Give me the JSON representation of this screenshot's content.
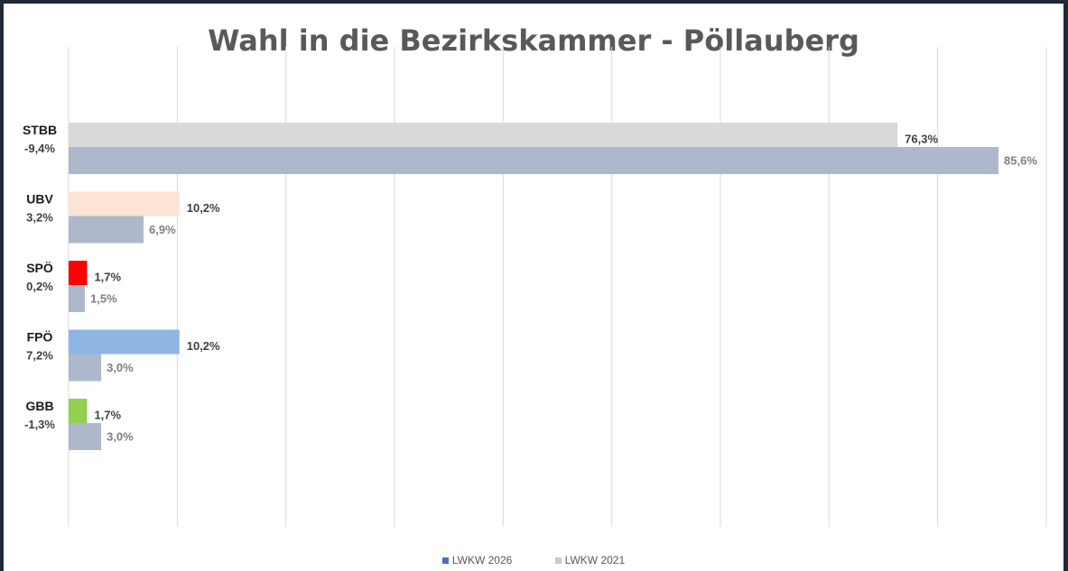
{
  "chart_data": {
    "type": "bar",
    "orientation": "horizontal",
    "title": "Wahl in die Bezirkskammer - Pöllauberg",
    "xlim": [
      0,
      90
    ],
    "grid": true,
    "legend_position": "bottom",
    "categories": [
      {
        "name": "STBB",
        "diff": "-9,4%",
        "color": "#d9d9d9"
      },
      {
        "name": "UBV",
        "diff": "3,2%",
        "color": "#fce4d6"
      },
      {
        "name": "SPÖ",
        "diff": "0,2%",
        "color": "#ff0000"
      },
      {
        "name": "FPÖ",
        "diff": "7,2%",
        "color": "#8eb4e3"
      },
      {
        "name": "GBB",
        "diff": "-1,3%",
        "color": "#92d050"
      }
    ],
    "series": [
      {
        "name": "LWKW 2026",
        "legend_color": "#4472c4",
        "values": [
          76.3,
          10.2,
          1.7,
          10.2,
          1.7
        ],
        "labels": [
          "76,3%",
          "10,2%",
          "1,7%",
          "10,2%",
          "1,7%"
        ]
      },
      {
        "name": "LWKW 2021",
        "legend_color": "#c9c9c9",
        "bar_color": "#adb9ca",
        "values": [
          85.6,
          6.9,
          1.5,
          3.0,
          3.0
        ],
        "labels": [
          "85,6%",
          "6,9%",
          "1,5%",
          "3,0%",
          "3,0%"
        ]
      }
    ]
  }
}
